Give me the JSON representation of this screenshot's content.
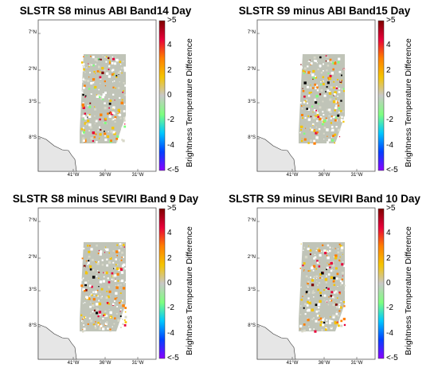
{
  "panels": [
    {
      "title": "SLSTR S8 minus ABI Band14 Day"
    },
    {
      "title": "SLSTR S9 minus ABI Band15 Day"
    },
    {
      "title": "SLSTR S8 minus SEVIRI Band 9 Day"
    },
    {
      "title": "SLSTR S9 minus SEVIRI Band 10 Day"
    }
  ],
  "colorbar": {
    "title": "Brightness Temperature Difference",
    "ticks": [
      ">5",
      "4",
      "2",
      "0",
      "-2",
      "-4",
      "<-5"
    ],
    "colors": [
      "#7f0000",
      "#e8003a",
      "#ff7f00",
      "#f5c400",
      "#c8c8c8",
      "#7fff7f",
      "#00c8ff",
      "#0040ff",
      "#8a00ff"
    ]
  },
  "map": {
    "lat_labels": [
      "7°N",
      "2°N",
      "3°S",
      "8°S"
    ],
    "lon_labels": [
      "41°W",
      "36°W",
      "31°W"
    ],
    "land_color": "#e6e6e6",
    "swath_color": "#c0c4b8"
  }
}
